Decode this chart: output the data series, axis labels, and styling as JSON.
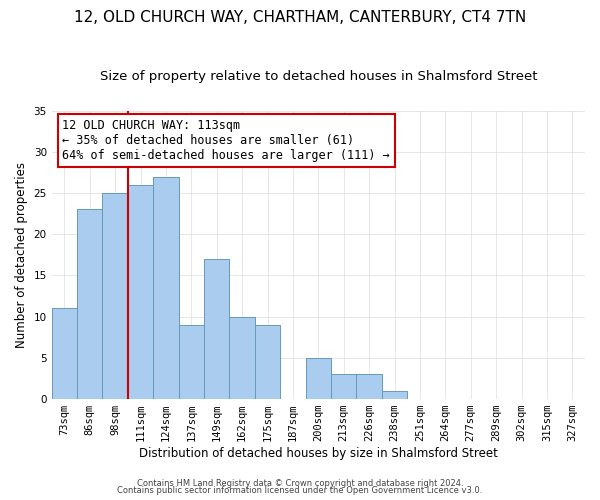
{
  "title": "12, OLD CHURCH WAY, CHARTHAM, CANTERBURY, CT4 7TN",
  "subtitle": "Size of property relative to detached houses in Shalmsford Street",
  "xlabel": "Distribution of detached houses by size in Shalmsford Street",
  "ylabel": "Number of detached properties",
  "footer_lines": [
    "Contains HM Land Registry data © Crown copyright and database right 2024.",
    "Contains public sector information licensed under the Open Government Licence v3.0."
  ],
  "bin_labels": [
    "73sqm",
    "86sqm",
    "98sqm",
    "111sqm",
    "124sqm",
    "137sqm",
    "149sqm",
    "162sqm",
    "175sqm",
    "187sqm",
    "200sqm",
    "213sqm",
    "226sqm",
    "238sqm",
    "251sqm",
    "264sqm",
    "277sqm",
    "289sqm",
    "302sqm",
    "315sqm",
    "327sqm"
  ],
  "bar_values": [
    11,
    23,
    25,
    26,
    27,
    9,
    17,
    10,
    9,
    0,
    5,
    3,
    3,
    1,
    0,
    0,
    0,
    0,
    0,
    0,
    0
  ],
  "bar_color": "#aaccee",
  "bar_edge_color": "#6699bb",
  "ylim": [
    0,
    35
  ],
  "yticks": [
    0,
    5,
    10,
    15,
    20,
    25,
    30,
    35
  ],
  "vline_x": 2.5,
  "vline_color": "#cc0000",
  "annotation_title": "12 OLD CHURCH WAY: 113sqm",
  "annotation_line1": "← 35% of detached houses are smaller (61)",
  "annotation_line2": "64% of semi-detached houses are larger (111) →",
  "annotation_box_color": "#ffffff",
  "annotation_box_edge_color": "#cc0000",
  "title_fontsize": 11,
  "subtitle_fontsize": 9.5,
  "axis_label_fontsize": 8.5,
  "tick_fontsize": 7.5,
  "annotation_fontsize": 8.5,
  "footer_fontsize": 6.0
}
